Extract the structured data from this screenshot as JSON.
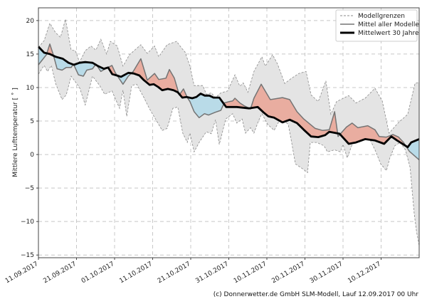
{
  "chart_data": {
    "type": "line",
    "title": "",
    "xlabel": "",
    "ylabel": "Mittlere Lufttemperatur [ ˚ ]",
    "x_unit": "days since 11.09.2017",
    "xlim": [
      0,
      100
    ],
    "ylim": [
      -15.4,
      21.9
    ],
    "grid": true,
    "legend_position": "top-right",
    "x_ticks": [
      {
        "day": 0,
        "label": "11.09.2017"
      },
      {
        "day": 10,
        "label": "21.09.2017"
      },
      {
        "day": 20,
        "label": "01.10.2017"
      },
      {
        "day": 30,
        "label": "11.10.2017"
      },
      {
        "day": 40,
        "label": "21.10.2017"
      },
      {
        "day": 50,
        "label": "31.10.2017"
      },
      {
        "day": 60,
        "label": "10.11.2017"
      },
      {
        "day": 70,
        "label": "20.11.2017"
      },
      {
        "day": 80,
        "label": "30.11.2017"
      },
      {
        "day": 90,
        "label": "10.12.2017"
      }
    ],
    "y_ticks": [
      {
        "value": 20,
        "label": "20"
      },
      {
        "value": 15,
        "label": "15"
      },
      {
        "value": 10,
        "label": "10"
      },
      {
        "value": 5,
        "label": "5"
      },
      {
        "value": 0,
        "label": "0"
      },
      {
        "value": -5,
        "label": "−5"
      },
      {
        "value": -10,
        "label": "−10"
      },
      {
        "value": -15,
        "label": "−15"
      }
    ],
    "legend": [
      "Modellgrenzen",
      "Mittel aller Modelle",
      "Mittelwert 30 Jahre"
    ],
    "colors": {
      "band": "#e4e4e4",
      "band_edge": "#8a8a8a",
      "mean": "#747474",
      "clim": "#000000",
      "above": "#e9ada0",
      "below": "#b9dbe8"
    },
    "series": {
      "upper": [
        [
          0,
          16.0
        ],
        [
          1.5,
          17.0
        ],
        [
          3,
          19.6
        ],
        [
          4.5,
          18.2
        ],
        [
          5.8,
          17.5
        ],
        [
          7.1,
          20.2
        ],
        [
          8.6,
          15.6
        ],
        [
          9.7,
          15.5
        ],
        [
          10.8,
          13.8
        ],
        [
          12.3,
          15.5
        ],
        [
          13.8,
          16.2
        ],
        [
          15.1,
          15.6
        ],
        [
          16.4,
          17.2
        ],
        [
          17.9,
          15.0
        ],
        [
          18.9,
          16.9
        ],
        [
          20.7,
          16.2
        ],
        [
          22.2,
          13.2
        ],
        [
          23.9,
          14.9
        ],
        [
          26.9,
          16.4
        ],
        [
          28.6,
          15.1
        ],
        [
          30.5,
          16.2
        ],
        [
          31.6,
          14.6
        ],
        [
          33.8,
          16.4
        ],
        [
          36.3,
          16.9
        ],
        [
          37.6,
          15.9
        ],
        [
          38.5,
          15.3
        ],
        [
          39.8,
          13.2
        ],
        [
          40.9,
          10.3
        ],
        [
          43.2,
          10.3
        ],
        [
          44.1,
          9.0
        ],
        [
          45.4,
          9.2
        ],
        [
          46.5,
          8.5
        ],
        [
          47.9,
          9.2
        ],
        [
          49.7,
          9.5
        ],
        [
          51.6,
          11.9
        ],
        [
          52.9,
          10.2
        ],
        [
          53.8,
          10.7
        ],
        [
          55.0,
          9.3
        ],
        [
          56.6,
          12.4
        ],
        [
          58.7,
          14.6
        ],
        [
          59.6,
          13.2
        ],
        [
          61.5,
          14.9
        ],
        [
          62.8,
          13.5
        ],
        [
          64.7,
          10.6
        ],
        [
          66.5,
          11.4
        ],
        [
          68.4,
          12.1
        ],
        [
          70.3,
          12.4
        ],
        [
          71.6,
          8.9
        ],
        [
          73.5,
          7.9
        ],
        [
          75.5,
          11.0
        ],
        [
          76.8,
          6.0
        ],
        [
          78.3,
          7.9
        ],
        [
          81.5,
          8.8
        ],
        [
          83.4,
          7.7
        ],
        [
          85.8,
          8.4
        ],
        [
          88.4,
          9.9
        ],
        [
          90.3,
          8.0
        ],
        [
          92.1,
          3.2
        ],
        [
          94.6,
          4.8
        ],
        [
          97.0,
          6.0
        ],
        [
          98.9,
          10.6
        ],
        [
          100,
          10.8
        ]
      ],
      "lower": [
        [
          0,
          12.0
        ],
        [
          1.5,
          13.3
        ],
        [
          2.4,
          12.4
        ],
        [
          3.4,
          13.3
        ],
        [
          4.5,
          10.6
        ],
        [
          6.2,
          8.2
        ],
        [
          7.3,
          8.9
        ],
        [
          8.6,
          11.7
        ],
        [
          10.8,
          10.0
        ],
        [
          12.3,
          7.4
        ],
        [
          14.2,
          11.7
        ],
        [
          16.1,
          10.3
        ],
        [
          17.4,
          9.0
        ],
        [
          19.3,
          9.5
        ],
        [
          21.3,
          6.9
        ],
        [
          22.2,
          9.6
        ],
        [
          23.2,
          5.7
        ],
        [
          24.5,
          10.3
        ],
        [
          25.8,
          10.5
        ],
        [
          27.7,
          8.5
        ],
        [
          29.2,
          6.8
        ],
        [
          32.5,
          3.6
        ],
        [
          33.8,
          3.9
        ],
        [
          35.3,
          6.9
        ],
        [
          36.6,
          7.1
        ],
        [
          37.9,
          3.2
        ],
        [
          39.1,
          1.8
        ],
        [
          39.8,
          3.2
        ],
        [
          40.9,
          0.4
        ],
        [
          42.2,
          1.8
        ],
        [
          44.1,
          3.4
        ],
        [
          45.4,
          3.1
        ],
        [
          46.5,
          5.2
        ],
        [
          47.5,
          1.5
        ],
        [
          49.2,
          5.3
        ],
        [
          51.0,
          6.1
        ],
        [
          52.1,
          4.7
        ],
        [
          53.5,
          5.3
        ],
        [
          54.4,
          3.2
        ],
        [
          55.7,
          4.0
        ],
        [
          56.6,
          3.2
        ],
        [
          57.8,
          5.0
        ],
        [
          58.7,
          6.1
        ],
        [
          60.2,
          4.5
        ],
        [
          61.9,
          3.6
        ],
        [
          63.7,
          5.5
        ],
        [
          65.6,
          4.5
        ],
        [
          66.5,
          1.8
        ],
        [
          67.5,
          -1.4
        ],
        [
          69.3,
          -2.1
        ],
        [
          70.7,
          -2.7
        ],
        [
          71.4,
          1.8
        ],
        [
          73.1,
          1.8
        ],
        [
          75.0,
          1.3
        ],
        [
          75.9,
          0.4
        ],
        [
          77.8,
          0.7
        ],
        [
          79.3,
          0.4
        ],
        [
          80.0,
          1.5
        ],
        [
          81.1,
          -0.5
        ],
        [
          82.4,
          1.5
        ],
        [
          83.4,
          3.7
        ],
        [
          85.2,
          2.8
        ],
        [
          87.1,
          2.2
        ],
        [
          88.4,
          0.7
        ],
        [
          89.9,
          -1.4
        ],
        [
          91.4,
          -2.4
        ],
        [
          92.3,
          -0.5
        ],
        [
          93.6,
          1.3
        ],
        [
          95.0,
          1.8
        ],
        [
          96.4,
          0.7
        ],
        [
          97.6,
          -1.9
        ],
        [
          98.7,
          -8.8
        ],
        [
          99.3,
          -11.5
        ],
        [
          100,
          -13.6
        ]
      ],
      "model_mean": [
        [
          0,
          13.4
        ],
        [
          2.1,
          14.9
        ],
        [
          3,
          16.5
        ],
        [
          3.9,
          14.9
        ],
        [
          4.9,
          12.8
        ],
        [
          6.2,
          12.6
        ],
        [
          7.3,
          13.0
        ],
        [
          8.6,
          13.0
        ],
        [
          9.2,
          13.5
        ],
        [
          10.5,
          11.9
        ],
        [
          11.8,
          11.7
        ],
        [
          12.7,
          12.6
        ],
        [
          14.2,
          12.8
        ],
        [
          15.1,
          13.5
        ],
        [
          16.4,
          12.4
        ],
        [
          17.6,
          12.8
        ],
        [
          19.3,
          13.3
        ],
        [
          20.2,
          12.2
        ],
        [
          22.2,
          10.5
        ],
        [
          23.6,
          11.7
        ],
        [
          24.9,
          12.4
        ],
        [
          26.9,
          14.3
        ],
        [
          28.6,
          11.1
        ],
        [
          30.5,
          12.1
        ],
        [
          31.6,
          11.2
        ],
        [
          33.5,
          11.4
        ],
        [
          34.4,
          12.7
        ],
        [
          35.7,
          11.4
        ],
        [
          37.0,
          8.9
        ],
        [
          38.1,
          9.8
        ],
        [
          39.1,
          8.5
        ],
        [
          39.8,
          7.9
        ],
        [
          40.9,
          6.4
        ],
        [
          42.2,
          5.5
        ],
        [
          43.6,
          6.1
        ],
        [
          44.7,
          5.9
        ],
        [
          46.4,
          6.3
        ],
        [
          47.9,
          6.6
        ],
        [
          48.8,
          7.7
        ],
        [
          50.1,
          7.9
        ],
        [
          51.0,
          8.0
        ],
        [
          51.6,
          8.4
        ],
        [
          52.9,
          7.7
        ],
        [
          54.0,
          7.3
        ],
        [
          55.7,
          6.8
        ],
        [
          56.6,
          8.4
        ],
        [
          58.5,
          10.5
        ],
        [
          60.9,
          8.2
        ],
        [
          64.1,
          8.5
        ],
        [
          66.0,
          8.2
        ],
        [
          67.9,
          6.4
        ],
        [
          69.7,
          5.3
        ],
        [
          72.7,
          3.9
        ],
        [
          74.6,
          3.6
        ],
        [
          76.4,
          3.7
        ],
        [
          77.8,
          6.4
        ],
        [
          78.7,
          2.7
        ],
        [
          80.9,
          4.1
        ],
        [
          82.4,
          4.7
        ],
        [
          83.9,
          4.0
        ],
        [
          86.5,
          4.3
        ],
        [
          88.4,
          3.7
        ],
        [
          89.5,
          2.7
        ],
        [
          91.4,
          2.6
        ],
        [
          93.1,
          3.0
        ],
        [
          94.6,
          2.6
        ],
        [
          95.9,
          1.8
        ],
        [
          97.4,
          0.5
        ],
        [
          100,
          -0.8
        ]
      ],
      "climate_mean_30y": [
        [
          0,
          16.1
        ],
        [
          1.5,
          15.2
        ],
        [
          3,
          15.0
        ],
        [
          4.5,
          14.6
        ],
        [
          6.4,
          14.3
        ],
        [
          7.9,
          13.7
        ],
        [
          9.3,
          13.4
        ],
        [
          10.8,
          13.7
        ],
        [
          12.3,
          13.8
        ],
        [
          14.2,
          13.7
        ],
        [
          15.7,
          13.2
        ],
        [
          17.2,
          12.8
        ],
        [
          18.3,
          13.0
        ],
        [
          19.4,
          12.0
        ],
        [
          20.6,
          11.8
        ],
        [
          21.7,
          11.6
        ],
        [
          23.6,
          12.2
        ],
        [
          25.0,
          12.1
        ],
        [
          26.5,
          11.8
        ],
        [
          27.7,
          11.1
        ],
        [
          29.2,
          10.4
        ],
        [
          30.3,
          10.5
        ],
        [
          31.4,
          10.1
        ],
        [
          32.5,
          9.6
        ],
        [
          34.0,
          9.8
        ],
        [
          35.5,
          9.6
        ],
        [
          36.6,
          9.3
        ],
        [
          37.8,
          8.5
        ],
        [
          38.9,
          8.6
        ],
        [
          40.4,
          8.4
        ],
        [
          41.5,
          8.6
        ],
        [
          42.6,
          9.1
        ],
        [
          43.7,
          8.8
        ],
        [
          44.9,
          8.8
        ],
        [
          46.0,
          8.5
        ],
        [
          47.5,
          8.5
        ],
        [
          49.3,
          7.1
        ],
        [
          52.1,
          7.1
        ],
        [
          55.3,
          6.9
        ],
        [
          57.6,
          7.1
        ],
        [
          59.1,
          6.3
        ],
        [
          60.4,
          5.7
        ],
        [
          61.9,
          5.5
        ],
        [
          64.1,
          4.8
        ],
        [
          66.0,
          5.2
        ],
        [
          67.9,
          4.7
        ],
        [
          69.7,
          3.7
        ],
        [
          71.6,
          2.7
        ],
        [
          73.5,
          2.6
        ],
        [
          75.3,
          2.9
        ],
        [
          76.4,
          3.4
        ],
        [
          79.1,
          3.1
        ],
        [
          81.5,
          1.6
        ],
        [
          83.4,
          1.8
        ],
        [
          85.8,
          2.3
        ],
        [
          88.4,
          2.1
        ],
        [
          90.8,
          1.6
        ],
        [
          92.7,
          2.7
        ],
        [
          94.2,
          2.1
        ],
        [
          97.0,
          1.1
        ],
        [
          97.9,
          1.8
        ],
        [
          100,
          2.3
        ]
      ]
    }
  },
  "credit": "(c) Donnerwetter.de GmbH SLM-Modell, Lauf 12.09.2017 00 Uhr"
}
